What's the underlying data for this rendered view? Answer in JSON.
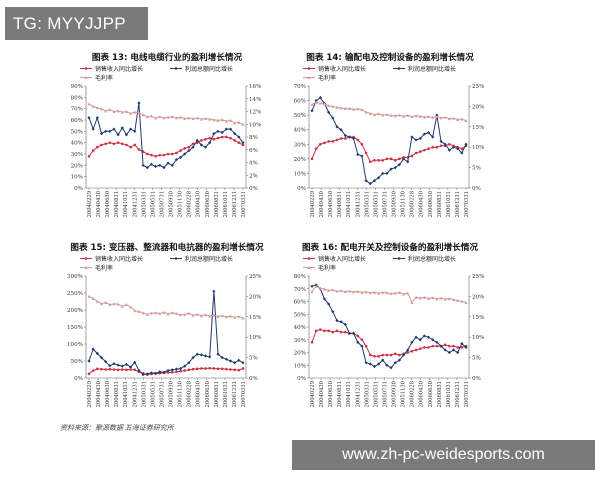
{
  "watermark_top": "TG: MYYJJPP",
  "watermark_bottom": "www.zh-pc-weidesports.com",
  "source": "资料来源：聚源数据 五海证券研究所",
  "colors": {
    "sales": "#cc3344",
    "profit": "#1f3a6e",
    "margin": "#d79a9a"
  },
  "chart_data": [
    {
      "id": "fig13",
      "type": "line",
      "title": "图表 13:  电线电缆行业的盈利增长情况",
      "legend": [
        "销售收入同比增长",
        "利润总额同比增长",
        "毛利率"
      ],
      "yleft": {
        "min": 0,
        "max": 90,
        "step": 10,
        "suffix": "%"
      },
      "yright": {
        "min": 0,
        "max": 16,
        "step": 2,
        "suffix": "%"
      },
      "xticks": [
        "2004/02/29",
        "2004/04/30",
        "2004/06/30",
        "2004/08/31",
        "2004/10/31",
        "2004/12/31",
        "2005/03/31",
        "2005/05/31",
        "2005/07/31",
        "2005/09/30",
        "2005/11/30",
        "2006/02/28",
        "2006/04/30",
        "2006/06/30",
        "2006/08/31",
        "2006/10/31",
        "2006/12/31",
        "2007/03/31"
      ],
      "series": [
        {
          "name": "销售收入同比增长",
          "axis": "left",
          "values": [
            28,
            33,
            36,
            38,
            39,
            40,
            39,
            40,
            39,
            38,
            36,
            38,
            34,
            32,
            30,
            29,
            28,
            29,
            29,
            30,
            30,
            31,
            33,
            35,
            36,
            39,
            40,
            42,
            43,
            44,
            43,
            44,
            45,
            45,
            44,
            42,
            40,
            38
          ]
        },
        {
          "name": "利润总额同比增长",
          "axis": "left",
          "values": [
            62,
            52,
            62,
            48,
            50,
            50,
            52,
            47,
            53,
            47,
            52,
            50,
            75,
            20,
            18,
            21,
            19,
            20,
            18,
            22,
            20,
            25,
            27,
            30,
            33,
            36,
            42,
            38,
            36,
            40,
            48,
            50,
            49,
            52,
            52,
            48,
            45,
            40
          ]
        },
        {
          "name": "毛利率",
          "axis": "right",
          "values": [
            13.2,
            12.8,
            12.6,
            12.4,
            12.1,
            12.3,
            12.0,
            12.1,
            11.9,
            12.0,
            11.7,
            11.9,
            11.8,
            11.5,
            11.2,
            11.3,
            11.0,
            11.2,
            11.0,
            11.1,
            11.2,
            11.0,
            11.1,
            10.9,
            11.0,
            10.9,
            11.0,
            10.8,
            10.9,
            10.8,
            10.7,
            10.6,
            10.7,
            10.5,
            10.6,
            10.2,
            10.3,
            10.0
          ]
        }
      ]
    },
    {
      "id": "fig14",
      "type": "line",
      "title": "图表 14:  输配电及控制设备的盈利增长情况",
      "legend": [
        "销售收入同比增长",
        "利润总额同比增长",
        "毛利率"
      ],
      "yleft": {
        "min": 0,
        "max": 70,
        "step": 10,
        "suffix": "%"
      },
      "yright": {
        "min": 0,
        "max": 25,
        "step": 5,
        "suffix": "%"
      },
      "xticks": [
        "2004/02/29",
        "2004/04/30",
        "2004/06/30",
        "2004/08/31",
        "2004/10/31",
        "2004/12/31",
        "2005/03/31",
        "2005/05/31",
        "2005/07/31",
        "2005/09/30",
        "2005/11/30",
        "2006/02/28",
        "2006/04/30",
        "2006/06/30",
        "2006/08/31",
        "2006/10/31",
        "2006/12/31",
        "2007/03/31"
      ],
      "series": [
        {
          "name": "销售收入同比增长",
          "axis": "left",
          "values": [
            20,
            27,
            30,
            31,
            32,
            32,
            33,
            34,
            34,
            35,
            35,
            33,
            30,
            24,
            18,
            19,
            19,
            19,
            20,
            20,
            19,
            20,
            21,
            21,
            22,
            24,
            25,
            26,
            27,
            28,
            28,
            29,
            29,
            30,
            29,
            28,
            27,
            29
          ]
        },
        {
          "name": "利润总额同比增长",
          "axis": "left",
          "values": [
            53,
            60,
            62,
            58,
            52,
            48,
            42,
            40,
            36,
            35,
            34,
            23,
            22,
            5,
            3,
            5,
            7,
            10,
            10,
            13,
            14,
            16,
            20,
            18,
            35,
            33,
            34,
            37,
            38,
            35,
            50,
            32,
            30,
            26,
            28,
            27,
            24,
            30
          ]
        },
        {
          "name": "毛利率",
          "axis": "right",
          "values": [
            20.5,
            21.0,
            20.8,
            20.6,
            20.2,
            20.0,
            19.8,
            19.6,
            19.5,
            19.5,
            19.3,
            19.4,
            19.2,
            18.6,
            18.3,
            18.0,
            18.2,
            17.9,
            18.0,
            17.8,
            17.7,
            17.9,
            17.6,
            17.8,
            17.5,
            17.7,
            17.6,
            17.4,
            17.5,
            17.3,
            17.5,
            17.2,
            17.3,
            17.0,
            17.1,
            16.8,
            16.9,
            16.5
          ]
        }
      ]
    },
    {
      "id": "fig15",
      "type": "line",
      "title": "图表 15:  变压器、整流器和电抗器的盈利增长情况",
      "legend": [
        "销售收入同比增长",
        "利润总额同比增长",
        "毛利率"
      ],
      "yleft": {
        "min": 0,
        "max": 300,
        "step": 50,
        "suffix": "%"
      },
      "yright": {
        "min": 0,
        "max": 25,
        "step": 5,
        "suffix": "%"
      },
      "xticks": [
        "2004/02/29",
        "2004/04/30",
        "2004/06/30",
        "2004/08/31",
        "2004/10/31",
        "2004/12/31",
        "2005/03/31",
        "2005/05/31",
        "2005/07/31",
        "2005/09/30",
        "2005/11/30",
        "2006/02/28",
        "2006/04/30",
        "2006/06/30",
        "2006/08/31",
        "2006/10/31",
        "2006/12/31",
        "2007/03/31"
      ],
      "series": [
        {
          "name": "销售收入同比增长",
          "axis": "left",
          "values": [
            12,
            22,
            27,
            26,
            25,
            26,
            25,
            24,
            25,
            24,
            25,
            24,
            18,
            14,
            10,
            12,
            13,
            14,
            15,
            16,
            17,
            18,
            20,
            22,
            24,
            26,
            27,
            28,
            28,
            29,
            28,
            27,
            27,
            26,
            25,
            24,
            23,
            28
          ]
        },
        {
          "name": "利润总额同比增长",
          "axis": "left",
          "values": [
            50,
            85,
            72,
            60,
            48,
            36,
            42,
            38,
            35,
            40,
            32,
            46,
            22,
            10,
            12,
            15,
            14,
            18,
            17,
            22,
            24,
            26,
            28,
            35,
            45,
            60,
            70,
            68,
            65,
            62,
            255,
            70,
            60,
            55,
            50,
            45,
            52,
            45
          ]
        },
        {
          "name": "毛利率",
          "axis": "right",
          "values": [
            20.0,
            19.5,
            18.8,
            18.2,
            18.5,
            18.0,
            18.2,
            18.1,
            17.6,
            18.0,
            17.4,
            16.5,
            16.3,
            16.0,
            15.6,
            15.9,
            16.0,
            15.8,
            16.1,
            15.7,
            16.0,
            15.8,
            15.5,
            15.6,
            15.9,
            15.4,
            15.6,
            15.3,
            15.5,
            15.2,
            15.4,
            15.1,
            15.3,
            15.0,
            15.2,
            14.9,
            15.1,
            14.7
          ]
        }
      ]
    },
    {
      "id": "fig16",
      "type": "line",
      "title": "图表 16:  配电开关及控制设备的盈利增长情况",
      "legend": [
        "销售收入同比增长",
        "利润总额同比增长",
        "毛利率"
      ],
      "yleft": {
        "min": 0,
        "max": 80,
        "step": 10,
        "suffix": "%"
      },
      "yright": {
        "min": 0,
        "max": 25,
        "step": 5,
        "suffix": "%"
      },
      "xticks": [
        "2004/02/29",
        "2004/04/30",
        "2004/06/30",
        "2004/08/31",
        "2004/10/31",
        "2004/12/31",
        "2005/03/31",
        "2005/05/31",
        "2005/07/31",
        "2005/09/30",
        "2005/11/30",
        "2006/02/28",
        "2006/04/30",
        "2006/06/30",
        "2006/08/31",
        "2006/10/31",
        "2006/12/31",
        "2007/03/31"
      ],
      "series": [
        {
          "name": "销售收入同比增长",
          "axis": "left",
          "values": [
            28,
            37,
            38,
            37,
            37,
            36,
            37,
            36,
            36,
            35,
            35,
            33,
            30,
            25,
            18,
            17,
            17,
            18,
            18,
            18,
            19,
            18,
            19,
            20,
            21,
            22,
            23,
            24,
            24,
            25,
            25,
            25,
            26,
            25,
            25,
            24,
            24,
            25
          ]
        },
        {
          "name": "利润总额同比增长",
          "axis": "left",
          "values": [
            72,
            73,
            70,
            62,
            58,
            52,
            45,
            44,
            42,
            35,
            35,
            28,
            25,
            12,
            11,
            9,
            11,
            14,
            10,
            8,
            12,
            14,
            18,
            22,
            28,
            32,
            30,
            33,
            32,
            30,
            28,
            25,
            22,
            20,
            22,
            20,
            27,
            24
          ]
        },
        {
          "name": "毛利率",
          "axis": "right",
          "values": [
            21.2,
            22.5,
            22.0,
            21.8,
            21.5,
            21.6,
            21.3,
            21.4,
            21.2,
            21.3,
            21.1,
            21.2,
            21.0,
            21.1,
            20.9,
            21.0,
            20.8,
            21.0,
            20.9,
            20.7,
            20.8,
            21.0,
            20.6,
            20.8,
            18.5,
            19.8,
            19.6,
            19.8,
            19.5,
            19.7,
            19.4,
            19.6,
            19.3,
            19.5,
            19.2,
            19.0,
            18.8,
            18.5
          ]
        }
      ]
    }
  ]
}
